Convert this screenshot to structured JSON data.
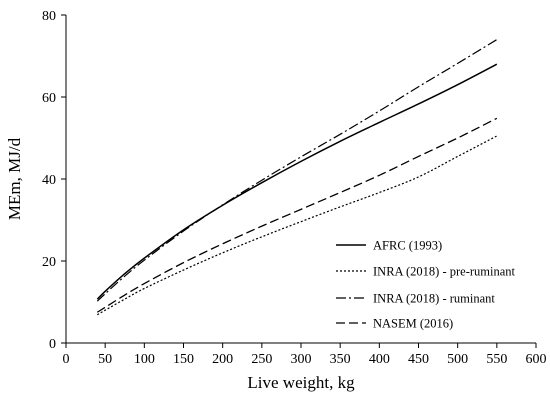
{
  "chart_data": {
    "type": "line",
    "xlabel": "Live weight, kg",
    "ylabel": "MEm, MJ/d",
    "xlim": [
      0,
      600
    ],
    "ylim": [
      0,
      80
    ],
    "xticks": [
      0,
      50,
      100,
      150,
      200,
      250,
      300,
      350,
      400,
      450,
      500,
      550,
      600
    ],
    "yticks": [
      0,
      20,
      40,
      60,
      80
    ],
    "grid": false,
    "legend_position": "lower-right",
    "x": [
      40,
      50,
      75,
      100,
      150,
      200,
      250,
      300,
      350,
      400,
      450,
      500,
      550
    ],
    "series": [
      {
        "name": "AFRC (1993)",
        "dash": "solid",
        "values": [
          10.7,
          12.6,
          16.9,
          20.7,
          27.6,
          33.6,
          39.1,
          44.3,
          49.2,
          53.8,
          58.3,
          63.0,
          68.0
        ]
      },
      {
        "name": "INRA (2018) - pre-ruminant",
        "dash": "dotted",
        "values": [
          6.9,
          8.0,
          10.7,
          13.3,
          17.8,
          22.0,
          25.9,
          29.6,
          33.2,
          36.7,
          40.5,
          45.5,
          50.5
        ]
      },
      {
        "name": "INRA (2018) - ruminant",
        "dash": "dashdot",
        "values": [
          10.2,
          12.0,
          16.3,
          20.2,
          27.3,
          33.7,
          39.7,
          45.4,
          50.9,
          56.6,
          62.5,
          68.2,
          74.0
        ]
      },
      {
        "name": "NASEM (2016)",
        "dash": "dashed",
        "values": [
          7.5,
          8.7,
          11.7,
          14.5,
          19.6,
          24.2,
          28.5,
          32.6,
          36.7,
          40.9,
          45.5,
          50.0,
          54.8
        ]
      }
    ]
  }
}
